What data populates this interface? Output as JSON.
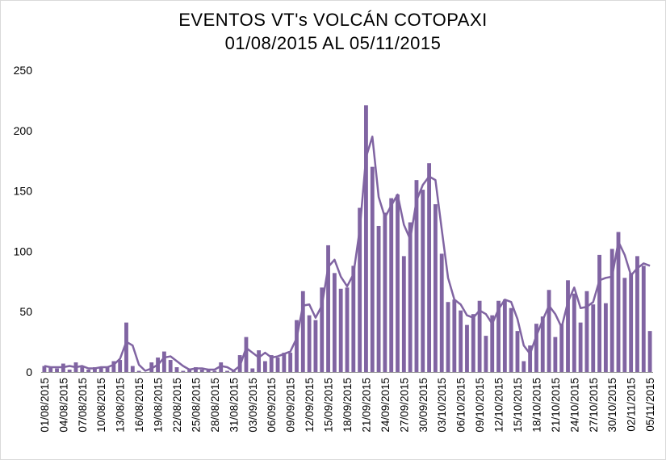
{
  "chart_data": {
    "type": "bar",
    "title": "EVENTOS  VT's  VOLCÁN COTOPAXI",
    "subtitle": "01/08/2015 AL 05/11/2015",
    "xlabel": "",
    "ylabel": "",
    "ylim": [
      0,
      250
    ],
    "yticks": [
      "0",
      "50",
      "100",
      "150",
      "200",
      "250"
    ],
    "ytick_values": [
      0,
      50,
      100,
      150,
      200,
      250
    ],
    "grid": false,
    "legend": "none",
    "x_tick_every": 3,
    "categories": [
      "01/08/2015",
      "02/08/2015",
      "03/08/2015",
      "04/08/2015",
      "05/08/2015",
      "06/08/2015",
      "07/08/2015",
      "08/08/2015",
      "09/08/2015",
      "10/08/2015",
      "11/08/2015",
      "12/08/2015",
      "13/08/2015",
      "14/08/2015",
      "15/08/2015",
      "16/08/2015",
      "17/08/2015",
      "18/08/2015",
      "19/08/2015",
      "20/08/2015",
      "21/08/2015",
      "22/08/2015",
      "23/08/2015",
      "24/08/2015",
      "25/08/2015",
      "26/08/2015",
      "27/08/2015",
      "28/08/2015",
      "29/08/2015",
      "30/08/2015",
      "31/08/2015",
      "01/09/2015",
      "02/09/2015",
      "03/09/2015",
      "04/09/2015",
      "05/09/2015",
      "06/09/2015",
      "07/09/2015",
      "08/09/2015",
      "09/09/2015",
      "10/09/2015",
      "11/09/2015",
      "12/09/2015",
      "13/09/2015",
      "14/09/2015",
      "15/09/2015",
      "16/09/2015",
      "17/09/2015",
      "18/09/2015",
      "19/09/2015",
      "20/09/2015",
      "21/09/2015",
      "22/09/2015",
      "23/09/2015",
      "24/09/2015",
      "25/09/2015",
      "26/09/2015",
      "27/09/2015",
      "28/09/2015",
      "29/09/2015",
      "30/09/2015",
      "01/10/2015",
      "02/10/2015",
      "03/10/2015",
      "04/10/2015",
      "05/10/2015",
      "06/10/2015",
      "07/10/2015",
      "08/10/2015",
      "09/10/2015",
      "10/10/2015",
      "11/10/2015",
      "12/10/2015",
      "13/10/2015",
      "14/10/2015",
      "15/10/2015",
      "16/10/2015",
      "17/10/2015",
      "18/10/2015",
      "19/10/2015",
      "20/10/2015",
      "21/10/2015",
      "22/10/2015",
      "23/10/2015",
      "24/10/2015",
      "25/10/2015",
      "26/10/2015",
      "27/10/2015",
      "28/10/2015",
      "29/10/2015",
      "30/10/2015",
      "31/10/2015",
      "01/11/2015",
      "02/11/2015",
      "03/11/2015",
      "04/11/2015",
      "05/11/2015"
    ],
    "series": [
      {
        "name": "",
        "kind": "bar",
        "color": "#8064a2",
        "values": [
          5,
          4,
          3,
          7,
          2,
          8,
          4,
          2,
          4,
          4,
          4,
          9,
          10,
          41,
          5,
          1,
          0,
          8,
          12,
          17,
          10,
          4,
          1,
          2,
          4,
          2,
          2,
          1,
          8,
          1,
          1,
          14,
          29,
          3,
          18,
          9,
          14,
          12,
          16,
          16,
          43,
          67,
          47,
          43,
          70,
          105,
          82,
          69,
          70,
          88,
          136,
          221,
          170,
          121,
          132,
          144,
          147,
          96,
          124,
          159,
          151,
          173,
          139,
          98,
          58,
          60,
          51,
          39,
          48,
          59,
          30,
          47,
          59,
          60,
          53,
          34,
          9,
          22,
          40,
          46,
          68,
          29,
          40,
          76,
          65,
          41,
          67,
          56,
          97,
          57,
          102,
          116,
          78,
          82,
          96,
          88,
          34
        ]
      },
      {
        "name": "",
        "kind": "line",
        "color": "#8064a2",
        "values": [
          5,
          4,
          4,
          4,
          5,
          4,
          5,
          3,
          3,
          4,
          4,
          6,
          11,
          25,
          22,
          6,
          1,
          3,
          6,
          12,
          13,
          9,
          5,
          2,
          3,
          3,
          2,
          2,
          5,
          4,
          1,
          5,
          20,
          16,
          12,
          16,
          12,
          13,
          15,
          17,
          28,
          55,
          56,
          45,
          55,
          87,
          93,
          79,
          71,
          81,
          118,
          178,
          195,
          145,
          128,
          138,
          147,
          122,
          110,
          142,
          155,
          162,
          159,
          118,
          78,
          60,
          56,
          47,
          45,
          51,
          48,
          40,
          52,
          60,
          58,
          44,
          22,
          15,
          30,
          43,
          55,
          48,
          37,
          58,
          70,
          53,
          54,
          58,
          76,
          78,
          79,
          108,
          97,
          80,
          86,
          90,
          88
        ]
      }
    ]
  }
}
